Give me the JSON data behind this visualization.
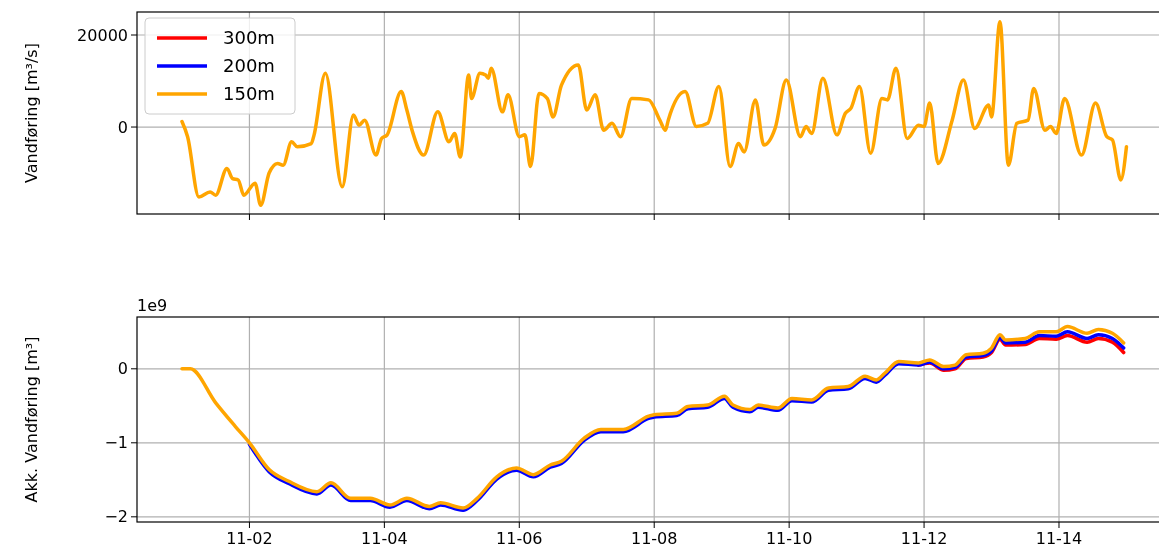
{
  "chart_data": [
    {
      "type": "line",
      "ylabel": "Vandføring [m³/s]",
      "xlim": [
        "--10-31T08:00",
        "--11-15T13:00"
      ],
      "ylim": [
        -18900,
        25000
      ],
      "yticks": [
        0,
        20000
      ],
      "xticks": [
        {
          "value": "--11-02",
          "label": null
        },
        {
          "value": "--11-04",
          "label": null
        },
        {
          "value": "--11-06",
          "label": null
        },
        {
          "value": "--11-08",
          "label": null
        },
        {
          "value": "--11-10",
          "label": null
        },
        {
          "value": "--11-12",
          "label": null
        },
        {
          "value": "--11-14",
          "label": null
        }
      ],
      "tick_labels": "y",
      "grid": true,
      "legend": "top left",
      "marker": "none",
      "line_style": "solid",
      "x": [
        "--11-01T00:00",
        "--11-01T02:00",
        "--11-01T06:00",
        "--11-01T10:00",
        "--11-01T12:00",
        "--11-01T16:00",
        "--11-01T18:00",
        "--11-01T20:00",
        "--11-01T22:00",
        "--11-02T02:00",
        "--11-02T04:00",
        "--11-02T07:00",
        "--11-02T10:00",
        "--11-02T12:00",
        "--11-02T15:00",
        "--11-02T17:00",
        "--11-02T22:00",
        "--11-02T23:00",
        "--11-03T03:00",
        "--11-03T09:00",
        "--11-03T13:00",
        "--11-03T15:00",
        "--11-03T17:00",
        "--11-03T21:00",
        "--11-03T23:00",
        "--11-04T01:00",
        "--11-04T06:00",
        "--11-04T08:00",
        "--11-04T10:00",
        "--11-04T14:00",
        "--11-04T19:00",
        "--11-04T23:00",
        "--11-05T01:00",
        "--11-05T03:00",
        "--11-05T06:00",
        "--11-05T07:00",
        "--11-05T10:00",
        "--11-05T12:00",
        "--11-05T13:00",
        "--11-05T14:00",
        "--11-05T18:00",
        "--11-05T20:00",
        "--11-06T00:00",
        "--11-06T02:00",
        "--11-06T04:00",
        "--11-06T07:00",
        "--11-06T10:00",
        "--11-06T12:00",
        "--11-06T15:00",
        "--11-06T21:00",
        "--11-07T00:00",
        "--11-07T03:00",
        "--11-07T06:00",
        "--11-07T09:00",
        "--11-07T12:00",
        "--11-07T16:00",
        "--11-07T22:00",
        "--11-08T02:00",
        "--11-08T04:00",
        "--11-08T05:00",
        "--11-08T11:00",
        "--11-08T15:00",
        "--11-08T19:00",
        "--11-08T23:00",
        "--11-09T03:00",
        "--11-09T06:00",
        "--11-09T08:00",
        "--11-09T12:00",
        "--11-09T15:00",
        "--11-09T19:00",
        "--11-09T23:00",
        "--11-10T04:00",
        "--11-10T06:00",
        "--11-10T08:00",
        "--11-10T12:00",
        "--11-10T17:00",
        "--11-10T20:00",
        "--11-10T22:00",
        "--11-11T01:00",
        "--11-11T05:00",
        "--11-11T09:00",
        "--11-11T11:00",
        "--11-11T14:00",
        "--11-11T18:00",
        "--11-11T22:00",
        "--11-12T00:00",
        "--11-12T02:00",
        "--11-12T05:00",
        "--11-12T10:00",
        "--11-12T14:00",
        "--11-12T18:00",
        "--11-12T23:00",
        "--11-13T00:00",
        "--11-13T03:00",
        "--11-13T06:00",
        "--11-13T09:00",
        "--11-13T13:00",
        "--11-13T15:00",
        "--11-13T19:00",
        "--11-13T21:00",
        "--11-13T23:00",
        "--11-14T02:00",
        "--11-14T08:00",
        "--11-14T13:00",
        "--11-14T17:00",
        "--11-14T19:00",
        "--11-14T22:00",
        "--11-15T00:00"
      ],
      "series": [
        {
          "name": "300m",
          "color": "#ff0000",
          "values": [
            null,
            null,
            null,
            null,
            null,
            null,
            null,
            null,
            null,
            null,
            null,
            null,
            null,
            null,
            null,
            null,
            null,
            null,
            null,
            null,
            null,
            null,
            null,
            null,
            null,
            null,
            null,
            null,
            null,
            null,
            null,
            null,
            null,
            null,
            null,
            null,
            null,
            null,
            null,
            null,
            null,
            null,
            null,
            null,
            null,
            null,
            null,
            null,
            null,
            null,
            null,
            null,
            null,
            null,
            null,
            null,
            null,
            null,
            null,
            null,
            null,
            null,
            null,
            null,
            null,
            null,
            null,
            null,
            null,
            null,
            null,
            null,
            null,
            null,
            null,
            null,
            null,
            null,
            null,
            null,
            null,
            null,
            null,
            null,
            null,
            null,
            null,
            null,
            null,
            null,
            null,
            null,
            null,
            null,
            null,
            null,
            null,
            null,
            null,
            null,
            null,
            null,
            null,
            null,
            null,
            null,
            null,
            null
          ]
        },
        {
          "name": "200m",
          "color": "#0000ff",
          "values": [
            null,
            null,
            null,
            null,
            null,
            null,
            null,
            null,
            null,
            null,
            null,
            null,
            null,
            null,
            null,
            null,
            null,
            null,
            null,
            null,
            null,
            null,
            null,
            null,
            null,
            null,
            null,
            null,
            null,
            null,
            null,
            null,
            null,
            null,
            null,
            null,
            null,
            null,
            null,
            null,
            null,
            null,
            null,
            null,
            null,
            null,
            null,
            null,
            null,
            null,
            null,
            null,
            null,
            null,
            null,
            null,
            null,
            null,
            null,
            null,
            null,
            null,
            null,
            null,
            null,
            null,
            null,
            null,
            null,
            null,
            null,
            null,
            null,
            null,
            null,
            null,
            null,
            null,
            null,
            null,
            null,
            null,
            null,
            null,
            null,
            null,
            null,
            null,
            null,
            null,
            null,
            null,
            null,
            null,
            null,
            null,
            null,
            null,
            null,
            null,
            null,
            null,
            null,
            null,
            null,
            null,
            null,
            null
          ]
        },
        {
          "name": "150m",
          "color": "#ffa500",
          "values": [
            1200,
            -2100,
            -15200,
            -14100,
            -14800,
            -9000,
            -11200,
            -11500,
            -14800,
            -12200,
            -17000,
            -10000,
            -7900,
            -8300,
            -3200,
            -4300,
            -3600,
            -1700,
            11700,
            -13000,
            2600,
            400,
            1500,
            -6100,
            -2500,
            -1700,
            7700,
            3700,
            -1000,
            -6100,
            3300,
            -3200,
            -1400,
            -6500,
            11300,
            6200,
            11700,
            11300,
            10600,
            12800,
            3300,
            7000,
            -2100,
            -1700,
            -8600,
            7300,
            6200,
            2200,
            9100,
            13500,
            3700,
            7000,
            -700,
            800,
            -2100,
            6200,
            5900,
            1500,
            -700,
            1500,
            7700,
            100,
            800,
            8800,
            -8600,
            -3600,
            -5400,
            5900,
            -3900,
            -300,
            10200,
            -2100,
            100,
            -1400,
            10600,
            -1700,
            3000,
            4100,
            8800,
            -5700,
            6200,
            5900,
            12800,
            -2500,
            400,
            100,
            5200,
            -7900,
            1500,
            10200,
            -300,
            4800,
            2200,
            22900,
            -8300,
            800,
            1500,
            8400,
            -700,
            100,
            -1400,
            6200,
            -6100,
            5200,
            -2100,
            -2800,
            -11500,
            -4300
          ]
        }
      ]
    },
    {
      "type": "line",
      "ylabel": "Akk. Vandføring [m³]",
      "annotations": [
        "1e9"
      ],
      "xlim": [
        "--10-31T08:00",
        "--11-15T13:00"
      ],
      "ylim": [
        -2.07,
        0.7
      ],
      "yticks": [
        -2,
        -1,
        0
      ],
      "xticks": [
        {
          "value": "--11-02",
          "label": "11-02"
        },
        {
          "value": "--11-04",
          "label": "11-04"
        },
        {
          "value": "--11-06",
          "label": "11-06"
        },
        {
          "value": "--11-08",
          "label": "11-08"
        },
        {
          "value": "--11-10",
          "label": "11-10"
        },
        {
          "value": "--11-12",
          "label": "11-12"
        },
        {
          "value": "--11-14",
          "label": "11-14"
        }
      ],
      "grid": true,
      "marker": "none",
      "line_style": "solid",
      "x": [
        "--11-01T00:00",
        "--11-01T03:00",
        "--11-01T12:00",
        "--11-01T19:00",
        "--11-02T00:00",
        "--11-02T07:00",
        "--11-02T14:00",
        "--11-03T00:00",
        "--11-03T05:00",
        "--11-03T12:00",
        "--11-03T19:00",
        "--11-04T02:00",
        "--11-04T08:00",
        "--11-04T16:00",
        "--11-04T20:00",
        "--11-05T04:00",
        "--11-05T09:00",
        "--11-05T16:00",
        "--11-05T23:00",
        "--11-06T05:00",
        "--11-06T11:00",
        "--11-06T15:00",
        "--11-06T23:00",
        "--11-07T05:00",
        "--11-07T13:00",
        "--11-07T22:00",
        "--11-08T00:00",
        "--11-08T08:00",
        "--11-08T12:00",
        "--11-08T19:00",
        "--11-09T01:00",
        "--11-09T04:00",
        "--11-09T10:00",
        "--11-09T13:00",
        "--11-09T20:00",
        "--11-10T01:00",
        "--11-10T08:00",
        "--11-10T14:00",
        "--11-10T21:00",
        "--11-11T03:00",
        "--11-11T07:00",
        "--11-11T10:00",
        "--11-11T15:00",
        "--11-11T22:00",
        "--11-12T02:00",
        "--11-12T07:00",
        "--11-12T11:00",
        "--11-12T15:00",
        "--11-12T21:00",
        "--11-13T00:00",
        "--11-13T03:00",
        "--11-13T05:00",
        "--11-13T12:00",
        "--11-13T17:00",
        "--11-13T23:00",
        "--11-14T03:00",
        "--11-14T10:00",
        "--11-14T14:00",
        "--11-14T19:00",
        "--11-14T23:00"
      ],
      "series": [
        {
          "color": "#ff0000",
          "values": [
            null,
            null,
            null,
            null,
            null,
            null,
            null,
            null,
            null,
            null,
            null,
            null,
            null,
            null,
            null,
            null,
            null,
            null,
            null,
            null,
            null,
            null,
            null,
            null,
            null,
            null,
            null,
            null,
            null,
            null,
            null,
            null,
            null,
            null,
            null,
            null,
            null,
            null,
            null,
            null,
            null,
            null,
            null,
            0.05,
            0.08,
            -0.02,
            0,
            0.14,
            0.16,
            0.22,
            0.4,
            0.32,
            0.33,
            0.41,
            0.4,
            0.45,
            0.36,
            0.41,
            0.36,
            0.22
          ]
        },
        {
          "color": "#0000ff",
          "values": [
            null,
            null,
            null,
            null,
            -1.02,
            -1.39,
            -1.55,
            -1.69,
            -1.57,
            -1.78,
            -1.78,
            -1.87,
            -1.78,
            -1.89,
            -1.84,
            -1.91,
            -1.78,
            -1.49,
            -1.37,
            -1.46,
            -1.33,
            -1.28,
            -0.97,
            -0.85,
            -0.85,
            -0.67,
            -0.65,
            -0.63,
            -0.54,
            -0.52,
            -0.4,
            -0.52,
            -0.58,
            -0.52,
            -0.56,
            -0.43,
            -0.45,
            -0.29,
            -0.27,
            -0.13,
            -0.18,
            -0.09,
            0.07,
            0.05,
            0.09,
            0,
            0.02,
            0.16,
            0.18,
            0.24,
            0.42,
            0.35,
            0.36,
            0.45,
            0.44,
            0.5,
            0.41,
            0.46,
            0.41,
            0.28
          ]
        },
        {
          "color": "#ffa500",
          "values": [
            0,
            0,
            -0.46,
            -0.78,
            -1,
            -1.36,
            -1.52,
            -1.66,
            -1.54,
            -1.75,
            -1.75,
            -1.84,
            -1.75,
            -1.86,
            -1.81,
            -1.88,
            -1.75,
            -1.46,
            -1.34,
            -1.43,
            -1.3,
            -1.25,
            -0.94,
            -0.82,
            -0.82,
            -0.64,
            -0.62,
            -0.6,
            -0.51,
            -0.49,
            -0.37,
            -0.49,
            -0.55,
            -0.49,
            -0.53,
            -0.4,
            -0.42,
            -0.26,
            -0.24,
            -0.1,
            -0.15,
            -0.06,
            0.1,
            0.08,
            0.12,
            0.03,
            0.05,
            0.19,
            0.21,
            0.28,
            0.46,
            0.39,
            0.41,
            0.5,
            0.5,
            0.57,
            0.48,
            0.53,
            0.48,
            0.35
          ]
        }
      ]
    }
  ]
}
